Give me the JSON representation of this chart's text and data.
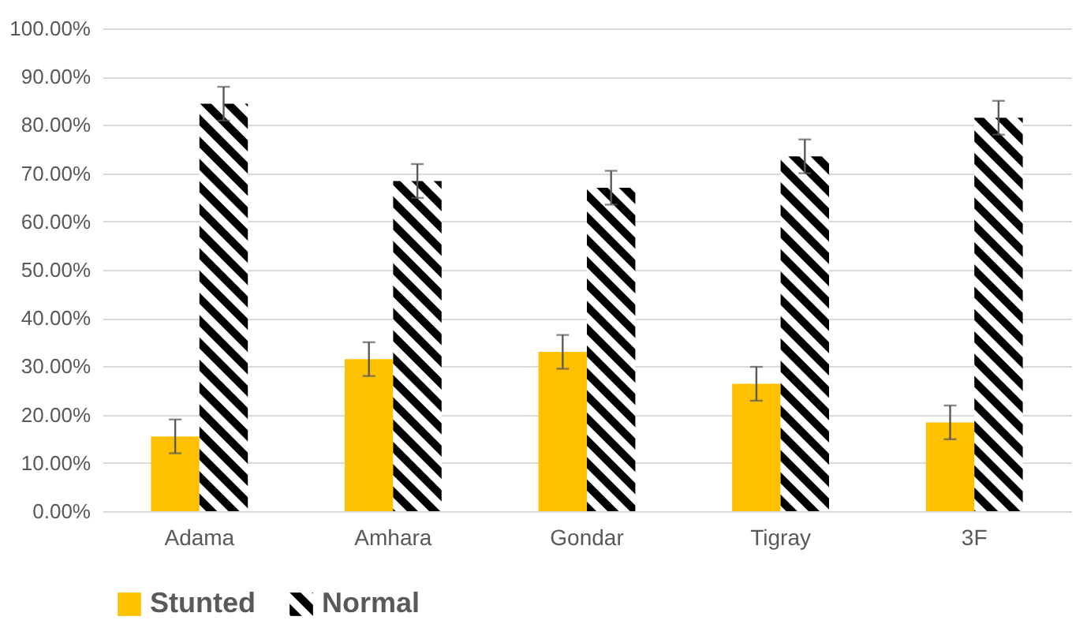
{
  "chart_data": {
    "type": "bar",
    "categories": [
      "Adama",
      "Amhara",
      "Gondar",
      "Tigray",
      "3F"
    ],
    "series": [
      {
        "name": "Stunted",
        "color": "#ffc000",
        "values": [
          15.5,
          31.5,
          33,
          26.4,
          18.4
        ],
        "errors": [
          3.5,
          3.5,
          3.5,
          3.5,
          3.5
        ]
      },
      {
        "name": "Normal",
        "color": "#000000",
        "values": [
          84.4,
          68.4,
          67,
          73.5,
          81.5
        ],
        "errors": [
          3.5,
          3.5,
          3.5,
          3.5,
          3.5
        ]
      }
    ],
    "ylim": [
      0,
      100
    ],
    "yticks": [
      {
        "value": 0,
        "label": "0.00%"
      },
      {
        "value": 10,
        "label": "10.00%"
      },
      {
        "value": 20,
        "label": "20.00%"
      },
      {
        "value": 30,
        "label": "30.00%"
      },
      {
        "value": 40,
        "label": "40.00%"
      },
      {
        "value": 50,
        "label": "50.00%"
      },
      {
        "value": 60,
        "label": "60.00%"
      },
      {
        "value": 70,
        "label": "70.00%"
      },
      {
        "value": 80,
        "label": "80.00%"
      },
      {
        "value": 90,
        "label": "90.00%"
      },
      {
        "value": 100,
        "label": "100.00%"
      }
    ],
    "grid": "y",
    "legend": "bottom"
  }
}
